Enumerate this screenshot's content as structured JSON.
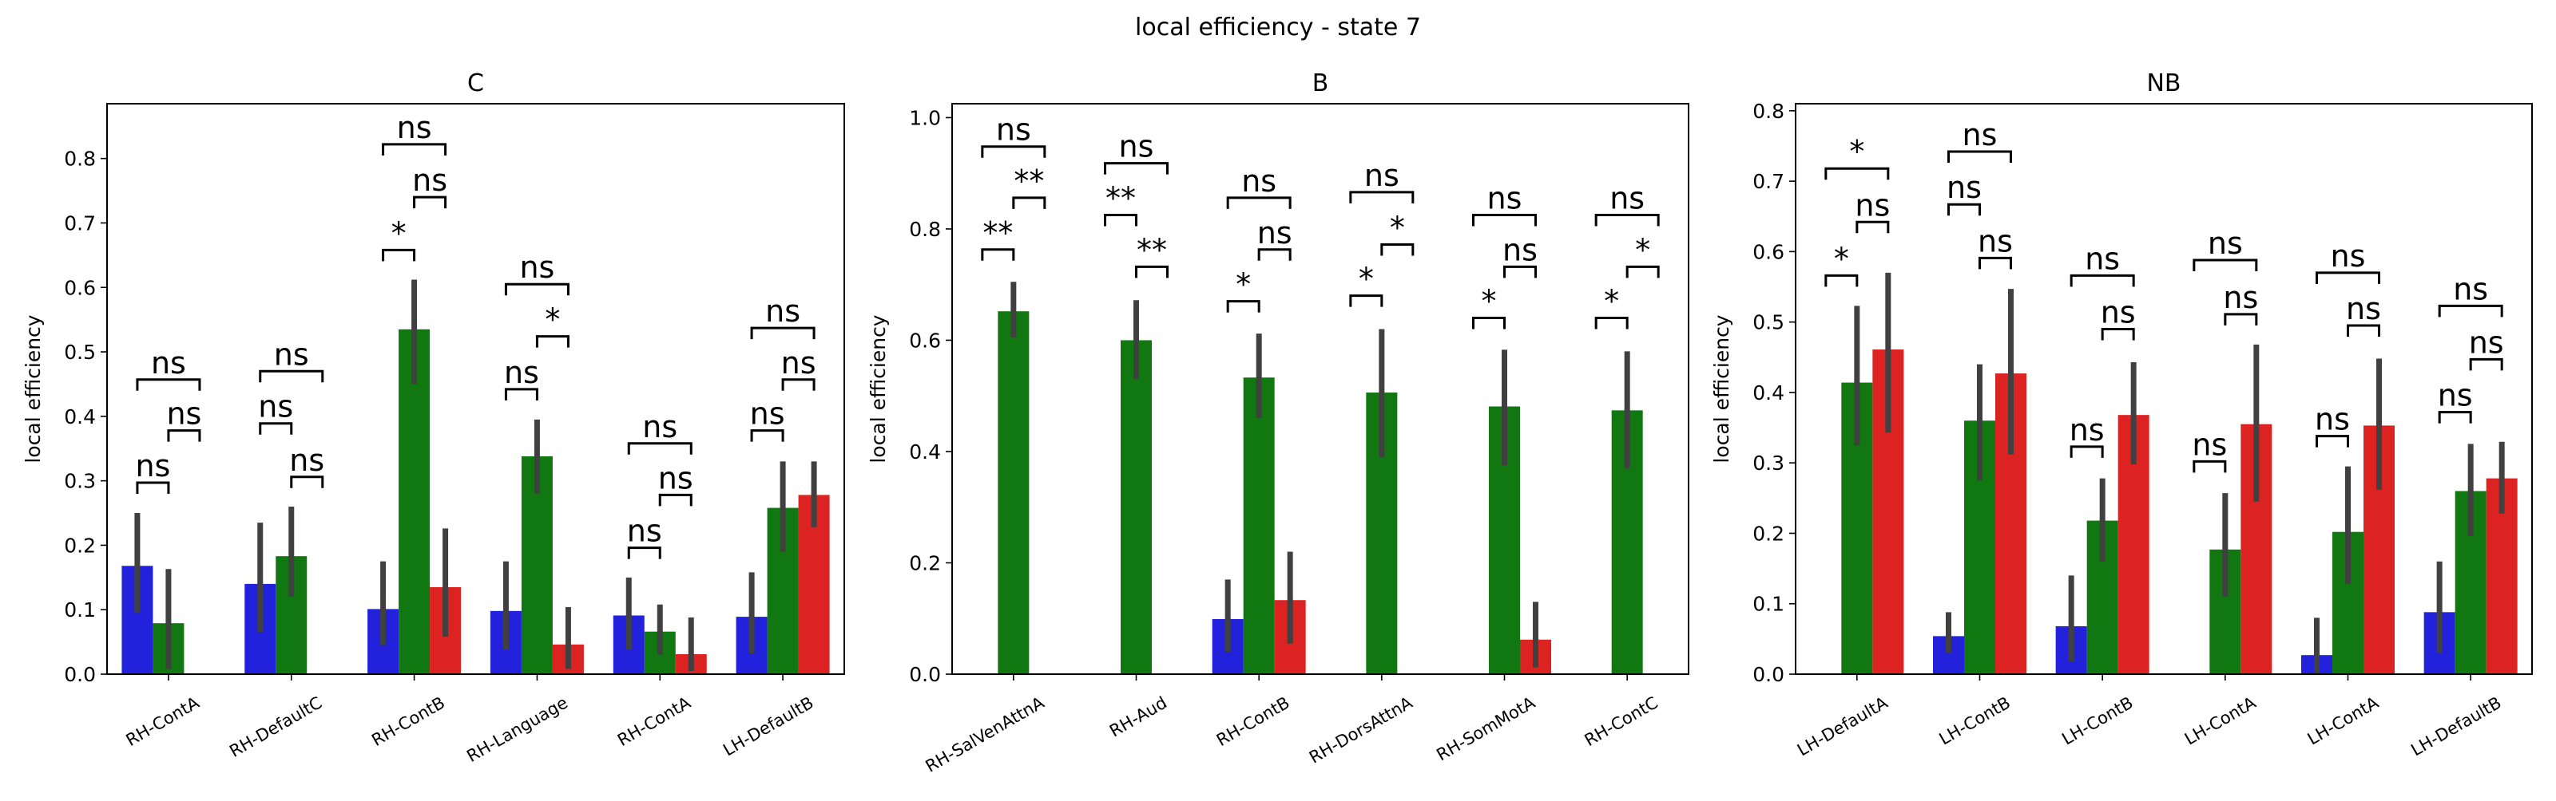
{
  "figure": {
    "title": "local efficiency - state 7"
  },
  "colors": {
    "blue": "#2222dd",
    "green": "#117711",
    "red": "#dd2222",
    "err": "#404040"
  },
  "chart_data": [
    {
      "type": "bar",
      "title": "C",
      "ylabel": "local efficiency",
      "ylim": [
        0,
        0.885
      ],
      "yticks": [
        0.0,
        0.1,
        0.2,
        0.3,
        0.4,
        0.5,
        0.6,
        0.7,
        0.8
      ],
      "categories": [
        "RH-ContA",
        "RH-DefaultC",
        "RH-ContB",
        "RH-Language",
        "RH-ContA",
        "LH-DefaultB"
      ],
      "series": [
        {
          "color": "blue",
          "values": [
            0.168,
            0.14,
            0.101,
            0.098,
            0.091,
            0.089
          ],
          "err_low": [
            0.095,
            0.065,
            0.045,
            0.038,
            0.038,
            0.032
          ],
          "err_high": [
            0.25,
            0.235,
            0.175,
            0.175,
            0.15,
            0.158
          ]
        },
        {
          "color": "green",
          "values": [
            0.079,
            0.183,
            0.535,
            0.338,
            0.066,
            0.258
          ],
          "err_low": [
            0.008,
            0.12,
            0.45,
            0.28,
            0.03,
            0.19
          ],
          "err_high": [
            0.163,
            0.26,
            0.612,
            0.395,
            0.108,
            0.33
          ]
        },
        {
          "color": "red",
          "values": [
            null,
            null,
            0.135,
            0.046,
            0.031,
            0.278
          ],
          "err_low": [
            null,
            null,
            0.058,
            0.008,
            0.005,
            0.228
          ],
          "err_high": [
            null,
            null,
            0.226,
            0.104,
            0.088,
            0.33
          ]
        }
      ],
      "annotations": [
        {
          "cat": 0,
          "from": 0,
          "to": 1,
          "y": 0.297,
          "label": "ns"
        },
        {
          "cat": 0,
          "from": 1,
          "to": 2,
          "y": 0.378,
          "label": "ns"
        },
        {
          "cat": 0,
          "from": 0,
          "to": 2,
          "y": 0.457,
          "label": "ns"
        },
        {
          "cat": 1,
          "from": 0,
          "to": 1,
          "y": 0.389,
          "label": "ns"
        },
        {
          "cat": 1,
          "from": 1,
          "to": 2,
          "y": 0.306,
          "label": "ns"
        },
        {
          "cat": 1,
          "from": 0,
          "to": 2,
          "y": 0.47,
          "label": "ns"
        },
        {
          "cat": 2,
          "from": 0,
          "to": 1,
          "y": 0.658,
          "label": "*"
        },
        {
          "cat": 2,
          "from": 1,
          "to": 2,
          "y": 0.74,
          "label": "ns"
        },
        {
          "cat": 2,
          "from": 0,
          "to": 2,
          "y": 0.822,
          "label": "ns"
        },
        {
          "cat": 3,
          "from": 0,
          "to": 1,
          "y": 0.442,
          "label": "ns"
        },
        {
          "cat": 3,
          "from": 1,
          "to": 2,
          "y": 0.524,
          "label": "*"
        },
        {
          "cat": 3,
          "from": 0,
          "to": 2,
          "y": 0.605,
          "label": "ns"
        },
        {
          "cat": 4,
          "from": 0,
          "to": 1,
          "y": 0.196,
          "label": "ns"
        },
        {
          "cat": 4,
          "from": 1,
          "to": 2,
          "y": 0.278,
          "label": "ns"
        },
        {
          "cat": 4,
          "from": 0,
          "to": 2,
          "y": 0.358,
          "label": "ns"
        },
        {
          "cat": 5,
          "from": 0,
          "to": 1,
          "y": 0.378,
          "label": "ns"
        },
        {
          "cat": 5,
          "from": 1,
          "to": 2,
          "y": 0.457,
          "label": "ns"
        },
        {
          "cat": 5,
          "from": 0,
          "to": 2,
          "y": 0.537,
          "label": "ns"
        }
      ]
    },
    {
      "type": "bar",
      "title": "B",
      "ylabel": "local efficiency",
      "ylim": [
        0,
        1.025
      ],
      "yticks": [
        0.0,
        0.2,
        0.4,
        0.6,
        0.8,
        1.0
      ],
      "categories": [
        "RH-SalVenAttnA",
        "RH-Aud",
        "RH-ContB",
        "RH-DorsAttnA",
        "RH-SomMotA",
        "RH-ContC"
      ],
      "series": [
        {
          "color": "blue",
          "values": [
            null,
            null,
            0.099,
            null,
            null,
            null
          ],
          "err_low": [
            null,
            null,
            0.04,
            null,
            null,
            null
          ],
          "err_high": [
            null,
            null,
            0.17,
            null,
            null,
            null
          ]
        },
        {
          "color": "green",
          "values": [
            0.652,
            0.6,
            0.533,
            0.506,
            0.481,
            0.474
          ],
          "err_low": [
            0.605,
            0.53,
            0.46,
            0.39,
            0.375,
            0.37
          ],
          "err_high": [
            0.705,
            0.672,
            0.612,
            0.62,
            0.583,
            0.58
          ]
        },
        {
          "color": "red",
          "values": [
            null,
            null,
            0.133,
            null,
            0.062,
            null
          ],
          "err_low": [
            null,
            null,
            0.055,
            null,
            0.012,
            null
          ],
          "err_high": [
            null,
            null,
            0.22,
            null,
            0.13,
            null
          ]
        }
      ],
      "annotations": [
        {
          "cat": 0,
          "from": 0,
          "to": 1,
          "y": 0.763,
          "label": "**"
        },
        {
          "cat": 0,
          "from": 1,
          "to": 2,
          "y": 0.856,
          "label": "**"
        },
        {
          "cat": 0,
          "from": 0,
          "to": 2,
          "y": 0.948,
          "label": "ns"
        },
        {
          "cat": 1,
          "from": 0,
          "to": 1,
          "y": 0.825,
          "label": "**"
        },
        {
          "cat": 1,
          "from": 1,
          "to": 2,
          "y": 0.732,
          "label": "**"
        },
        {
          "cat": 1,
          "from": 0,
          "to": 2,
          "y": 0.918,
          "label": "ns"
        },
        {
          "cat": 2,
          "from": 0,
          "to": 1,
          "y": 0.67,
          "label": "*"
        },
        {
          "cat": 2,
          "from": 1,
          "to": 2,
          "y": 0.763,
          "label": "ns"
        },
        {
          "cat": 2,
          "from": 0,
          "to": 2,
          "y": 0.856,
          "label": "ns"
        },
        {
          "cat": 3,
          "from": 0,
          "to": 1,
          "y": 0.68,
          "label": "*"
        },
        {
          "cat": 3,
          "from": 1,
          "to": 2,
          "y": 0.772,
          "label": "*"
        },
        {
          "cat": 3,
          "from": 0,
          "to": 2,
          "y": 0.866,
          "label": "ns"
        },
        {
          "cat": 4,
          "from": 0,
          "to": 1,
          "y": 0.64,
          "label": "*"
        },
        {
          "cat": 4,
          "from": 1,
          "to": 2,
          "y": 0.732,
          "label": "ns"
        },
        {
          "cat": 4,
          "from": 0,
          "to": 2,
          "y": 0.825,
          "label": "ns"
        },
        {
          "cat": 5,
          "from": 0,
          "to": 1,
          "y": 0.64,
          "label": "*"
        },
        {
          "cat": 5,
          "from": 1,
          "to": 2,
          "y": 0.732,
          "label": "*"
        },
        {
          "cat": 5,
          "from": 0,
          "to": 2,
          "y": 0.825,
          "label": "ns"
        }
      ]
    },
    {
      "type": "bar",
      "title": "NB",
      "ylabel": "local efficiency",
      "ylim": [
        0,
        0.81
      ],
      "yticks": [
        0.0,
        0.1,
        0.2,
        0.3,
        0.4,
        0.5,
        0.6,
        0.7,
        0.8
      ],
      "categories": [
        "LH-DefaultA",
        "LH-ContB",
        "LH-ContB",
        "LH-ContA",
        "LH-ContA",
        "LH-DefaultB"
      ],
      "series": [
        {
          "color": "blue",
          "values": [
            null,
            0.054,
            0.068,
            null,
            0.027,
            0.088
          ],
          "err_low": [
            null,
            0.03,
            0.018,
            null,
            0.0,
            0.03
          ],
          "err_high": [
            null,
            0.088,
            0.14,
            null,
            0.08,
            0.16
          ]
        },
        {
          "color": "green",
          "values": [
            0.414,
            0.36,
            0.218,
            0.177,
            0.202,
            0.26
          ],
          "err_low": [
            0.325,
            0.275,
            0.16,
            0.11,
            0.128,
            0.196
          ],
          "err_high": [
            0.523,
            0.44,
            0.278,
            0.257,
            0.295,
            0.327
          ]
        },
        {
          "color": "red",
          "values": [
            0.461,
            0.427,
            0.368,
            0.355,
            0.353,
            0.278
          ],
          "err_low": [
            0.343,
            0.312,
            0.298,
            0.245,
            0.262,
            0.228
          ],
          "err_high": [
            0.57,
            0.547,
            0.443,
            0.468,
            0.448,
            0.33
          ]
        }
      ],
      "annotations": [
        {
          "cat": 0,
          "from": 0,
          "to": 1,
          "y": 0.566,
          "label": "*"
        },
        {
          "cat": 0,
          "from": 1,
          "to": 2,
          "y": 0.642,
          "label": "ns"
        },
        {
          "cat": 0,
          "from": 0,
          "to": 2,
          "y": 0.718,
          "label": "*"
        },
        {
          "cat": 1,
          "from": 0,
          "to": 1,
          "y": 0.667,
          "label": "ns"
        },
        {
          "cat": 1,
          "from": 1,
          "to": 2,
          "y": 0.591,
          "label": "ns"
        },
        {
          "cat": 1,
          "from": 0,
          "to": 2,
          "y": 0.742,
          "label": "ns"
        },
        {
          "cat": 2,
          "from": 0,
          "to": 1,
          "y": 0.323,
          "label": "ns"
        },
        {
          "cat": 2,
          "from": 1,
          "to": 2,
          "y": 0.49,
          "label": "ns"
        },
        {
          "cat": 2,
          "from": 0,
          "to": 2,
          "y": 0.566,
          "label": "ns"
        },
        {
          "cat": 3,
          "from": 0,
          "to": 1,
          "y": 0.302,
          "label": "ns"
        },
        {
          "cat": 3,
          "from": 1,
          "to": 2,
          "y": 0.511,
          "label": "ns"
        },
        {
          "cat": 3,
          "from": 0,
          "to": 2,
          "y": 0.588,
          "label": "ns"
        },
        {
          "cat": 4,
          "from": 0,
          "to": 1,
          "y": 0.338,
          "label": "ns"
        },
        {
          "cat": 4,
          "from": 1,
          "to": 2,
          "y": 0.495,
          "label": "ns"
        },
        {
          "cat": 4,
          "from": 0,
          "to": 2,
          "y": 0.57,
          "label": "ns"
        },
        {
          "cat": 5,
          "from": 0,
          "to": 1,
          "y": 0.372,
          "label": "ns"
        },
        {
          "cat": 5,
          "from": 1,
          "to": 2,
          "y": 0.447,
          "label": "ns"
        },
        {
          "cat": 5,
          "from": 0,
          "to": 2,
          "y": 0.523,
          "label": "ns"
        }
      ]
    }
  ]
}
